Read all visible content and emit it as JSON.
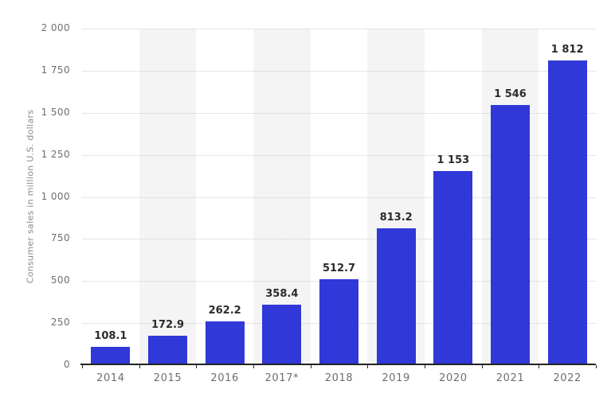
{
  "chart_data": {
    "type": "bar",
    "title": "",
    "xlabel": "",
    "ylabel": "Consumer sales in million U.S. dollars",
    "categories": [
      "2014",
      "2015",
      "2016",
      "2017*",
      "2018",
      "2019",
      "2020",
      "2021",
      "2022"
    ],
    "values": [
      108.1,
      172.9,
      262.2,
      358.4,
      512.7,
      813.2,
      1153,
      1546,
      1812
    ],
    "value_labels": [
      "108.1",
      "172.9",
      "262.2",
      "358.4",
      "512.7",
      "813.2",
      "1 153",
      "1 546",
      "1 812"
    ],
    "ylim": [
      0,
      2000
    ],
    "yticks": [
      0,
      250,
      500,
      750,
      1000,
      1250,
      1500,
      1750,
      2000
    ],
    "ytick_labels": [
      "0",
      "250",
      "500",
      "750",
      "1 000",
      "1 250",
      "1 500",
      "1 750",
      "2 000"
    ],
    "grid": "horizontal-dotted",
    "legend_position": "none",
    "banded_columns": [
      1,
      3,
      5,
      7
    ]
  },
  "colors": {
    "background": "#ffffff",
    "bar": "#3038d8",
    "column_band": "#f4f4f4",
    "gridline": "#cccccc",
    "axis_line": "#222222",
    "value_label": "#2b2b2b",
    "tick_label": "#6e6e6e",
    "axis_title": "#8a8a8a"
  }
}
